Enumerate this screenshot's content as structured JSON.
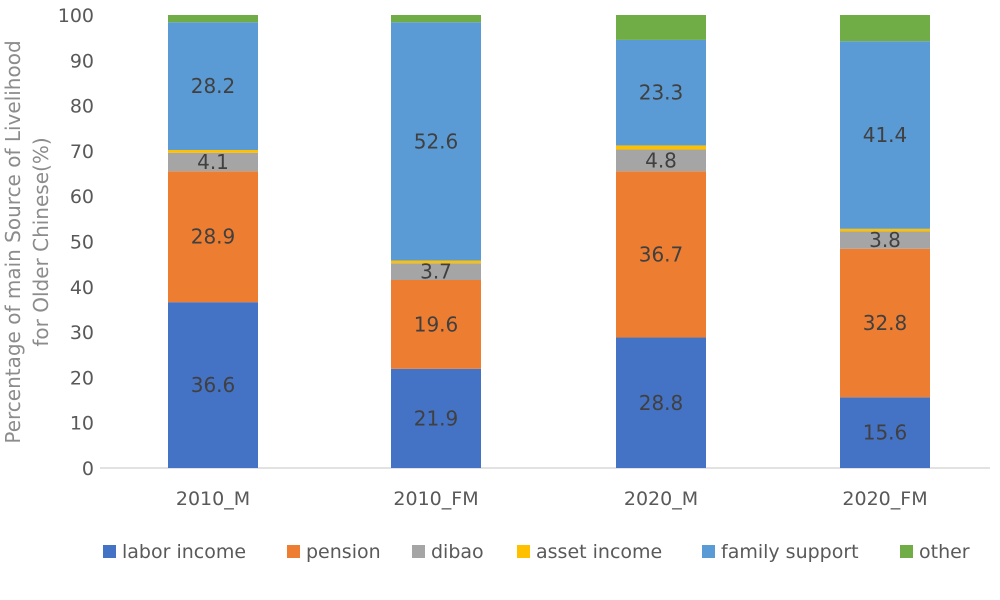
{
  "chart_data": {
    "type": "bar",
    "stacked": true,
    "title": "",
    "xlabel": "",
    "ylabel": "Percentage of main Source of Livelihood for Older Chinese(%)",
    "ylabel_lines": [
      "Percentage of main Source of Livelihood",
      "for Older Chinese(%)"
    ],
    "ylim": [
      0,
      100
    ],
    "yticks": [
      0,
      10,
      20,
      30,
      40,
      50,
      60,
      70,
      80,
      90,
      100
    ],
    "grid": false,
    "legend_position": "bottom",
    "categories": [
      "2010_M",
      "2010_FM",
      "2020_M",
      "2020_FM"
    ],
    "series": [
      {
        "name": "labor income",
        "color": "#4472C4",
        "values": [
          36.6,
          21.9,
          28.8,
          15.6
        ],
        "show_labels": true
      },
      {
        "name": "pension",
        "color": "#ED7D31",
        "values": [
          28.9,
          19.6,
          36.7,
          32.8
        ],
        "show_labels": true
      },
      {
        "name": "dibao",
        "color": "#A5A5A5",
        "values": [
          4.1,
          3.7,
          4.8,
          3.8
        ],
        "show_labels": true
      },
      {
        "name": "asset income",
        "color": "#FFC000",
        "values": [
          0.6,
          0.6,
          0.9,
          0.6
        ],
        "show_labels": false
      },
      {
        "name": "family support",
        "color": "#5B9BD5",
        "values": [
          28.2,
          52.6,
          23.3,
          41.4
        ],
        "show_labels": true
      },
      {
        "name": "other",
        "color": "#70AD47",
        "values": [
          1.6,
          1.6,
          5.5,
          5.8
        ],
        "show_labels": false
      }
    ]
  }
}
